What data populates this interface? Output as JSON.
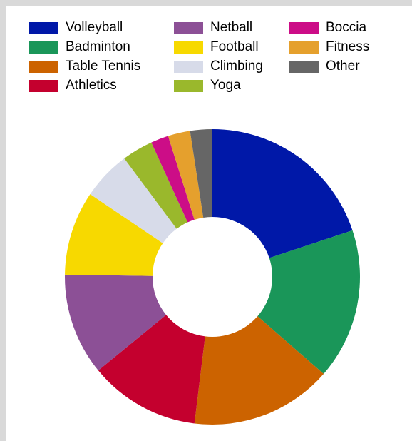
{
  "chart_data": {
    "type": "pie",
    "donut": true,
    "legend_placement": "top",
    "start_angle_deg": 90,
    "direction": "clockwise",
    "series": [
      {
        "name": "Volleyball",
        "value": 20.5,
        "color": "#0018a8"
      },
      {
        "name": "Badminton",
        "value": 17.0,
        "color": "#1a9659"
      },
      {
        "name": "Table Tennis",
        "value": 16.0,
        "color": "#cc6300"
      },
      {
        "name": "Athletics",
        "value": 12.5,
        "color": "#c4002e"
      },
      {
        "name": "Netball",
        "value": 11.5,
        "color": "#8c5096"
      },
      {
        "name": "Football",
        "value": 9.5,
        "color": "#f7d900"
      },
      {
        "name": "Climbing",
        "value": 5.5,
        "color": "#d7dbe9"
      },
      {
        "name": "Yoga",
        "value": 3.5,
        "color": "#9ab82c"
      },
      {
        "name": "Boccia",
        "value": 2.0,
        "color": "#cc0d87"
      },
      {
        "name": "Fitness",
        "value": 2.5,
        "color": "#e5a02d"
      },
      {
        "name": "Other",
        "value": 2.5,
        "color": "#666666"
      }
    ]
  }
}
